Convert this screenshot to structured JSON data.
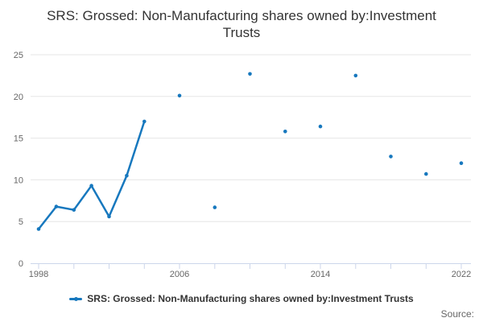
{
  "title": "SRS: Grossed: Non-Manufacturing shares owned by:Investment Trusts",
  "legend": {
    "label": "SRS: Grossed: Non-Manufacturing shares owned by:Investment Trusts"
  },
  "credits": "Source:",
  "colors": {
    "line": "#1778be",
    "grid": "#e6e6e6",
    "axis": "#ccd6eb",
    "tick_label": "#666666",
    "title_text": "#333333",
    "legend_text": "#333333",
    "credits_text": "#666666"
  },
  "chart_data": {
    "type": "line",
    "title": "SRS: Grossed: Non-Manufacturing shares owned by:Investment Trusts",
    "xlabel": "",
    "ylabel": "",
    "x_axis": {
      "range": [
        1998,
        2022
      ],
      "tick_step": 2,
      "labeled_ticks": [
        1998,
        2006,
        2014,
        2022
      ]
    },
    "y_axis": {
      "range": [
        0,
        25
      ],
      "ticks": [
        0,
        5,
        10,
        15,
        20,
        25
      ]
    },
    "grid": "horizontal-only",
    "legend_position": "bottom-center",
    "gap_rule": "points connect only when consecutive x values differ by 1 year; other points render as isolated markers",
    "series": [
      {
        "name": "SRS: Grossed: Non-Manufacturing shares owned by:Investment Trusts",
        "points": [
          [
            1998,
            4.1
          ],
          [
            1999,
            6.8
          ],
          [
            2000,
            6.4
          ],
          [
            2001,
            9.3
          ],
          [
            2002,
            5.6
          ],
          [
            2003,
            10.5
          ],
          [
            2004,
            17.0
          ],
          [
            2006,
            20.1
          ],
          [
            2008,
            6.7
          ],
          [
            2010,
            22.7
          ],
          [
            2012,
            15.8
          ],
          [
            2014,
            16.4
          ],
          [
            2016,
            22.5
          ],
          [
            2018,
            12.8
          ],
          [
            2020,
            10.7
          ],
          [
            2022,
            12.0
          ]
        ]
      }
    ]
  }
}
